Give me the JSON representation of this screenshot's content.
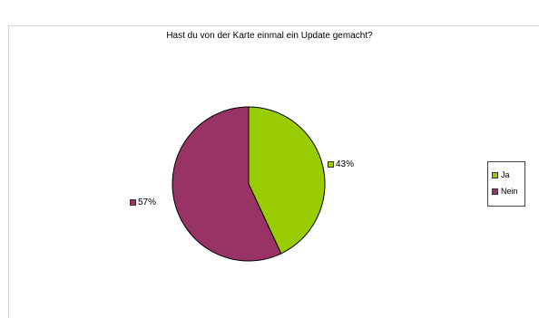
{
  "chart_data": {
    "type": "pie",
    "title": "Hast du von der Karte einmal ein Update gemacht?",
    "categories": [
      "Ja",
      "Nein"
    ],
    "values": [
      43,
      57
    ],
    "value_labels": [
      "43%",
      "57%"
    ],
    "colors": [
      "#99CC00",
      "#993366"
    ],
    "border_color": "#000000",
    "legend": {
      "placement": "right",
      "items": [
        {
          "label": "Ja",
          "color": "#99CC00"
        },
        {
          "label": "Nein",
          "color": "#993366"
        }
      ]
    }
  }
}
